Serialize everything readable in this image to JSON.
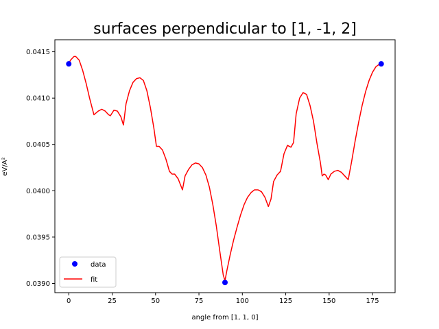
{
  "chart_data": {
    "type": "line",
    "title": "surfaces perpendicular to [1, -1, 2]",
    "xlabel": "angle from [1, 1, 0]",
    "ylabel": "eV/A²",
    "xlim": [
      -8,
      188
    ],
    "ylim": [
      0.0389,
      0.04163
    ],
    "xticks": [
      0,
      25,
      50,
      75,
      100,
      125,
      150,
      175
    ],
    "xtick_labels": [
      "0",
      "25",
      "50",
      "75",
      "100",
      "125",
      "150",
      "175"
    ],
    "yticks": [
      0.039,
      0.0395,
      0.04,
      0.0405,
      0.041,
      0.0415
    ],
    "ytick_labels": [
      "0.0390",
      "0.0395",
      "0.0400",
      "0.0405",
      "0.0410",
      "0.0415"
    ],
    "grid": false,
    "legend_position": "lower-left",
    "series": [
      {
        "name": "data",
        "kind": "markers",
        "color": "#0000ff",
        "x": [
          0,
          90,
          180
        ],
        "y": [
          0.04137,
          0.03901,
          0.04137
        ]
      },
      {
        "name": "fit",
        "kind": "line",
        "color": "#ff0000",
        "x": [
          0,
          1,
          3,
          4,
          6,
          8,
          10,
          12,
          14.5,
          17,
          19,
          21,
          23,
          24,
          26,
          28,
          30,
          31.5,
          33,
          35,
          37,
          39,
          41,
          43,
          45,
          47,
          49,
          50.5,
          52,
          54,
          56,
          58,
          59.5,
          61,
          63,
          65.5,
          67,
          69,
          71,
          73,
          75,
          77,
          79,
          81,
          83,
          85,
          87,
          89,
          90,
          91,
          93,
          95,
          97,
          99,
          101,
          103,
          105,
          107,
          109,
          111,
          113,
          115,
          116.5,
          118,
          120,
          122,
          124,
          126,
          128,
          129.5,
          131,
          133,
          135,
          137,
          139,
          141,
          143,
          145,
          146,
          147,
          148,
          149.5,
          151,
          153,
          155,
          157,
          159,
          161,
          163,
          165,
          167,
          169,
          171,
          173,
          175,
          177,
          178.5,
          180
        ],
        "y": [
          0.04137,
          0.04141,
          0.04145,
          0.04145,
          0.04141,
          0.0413,
          0.04116,
          0.041,
          0.04082,
          0.04086,
          0.04088,
          0.04086,
          0.04082,
          0.04081,
          0.04087,
          0.04086,
          0.0408,
          0.04071,
          0.04094,
          0.04108,
          0.04117,
          0.04121,
          0.04122,
          0.04119,
          0.04108,
          0.0409,
          0.04068,
          0.04048,
          0.04048,
          0.04044,
          0.04034,
          0.04021,
          0.04018,
          0.04018,
          0.04013,
          0.04001,
          0.04016,
          0.04023,
          0.04028,
          0.0403,
          0.04029,
          0.04025,
          0.04017,
          0.04004,
          0.03985,
          0.03962,
          0.03935,
          0.03909,
          0.03903,
          0.03913,
          0.03931,
          0.03947,
          0.03961,
          0.03974,
          0.03985,
          0.03993,
          0.03998,
          0.04001,
          0.04001,
          0.03999,
          0.03993,
          0.03983,
          0.03991,
          0.0401,
          0.04017,
          0.04021,
          0.0404,
          0.04049,
          0.04047,
          0.04052,
          0.04083,
          0.041,
          0.04106,
          0.04104,
          0.04092,
          0.04075,
          0.04051,
          0.0403,
          0.04016,
          0.04018,
          0.04017,
          0.04012,
          0.04018,
          0.04021,
          0.04022,
          0.0402,
          0.04016,
          0.04012,
          0.04032,
          0.04054,
          0.04074,
          0.04092,
          0.04107,
          0.04119,
          0.04128,
          0.04134,
          0.04136,
          0.04137
        ]
      }
    ]
  }
}
